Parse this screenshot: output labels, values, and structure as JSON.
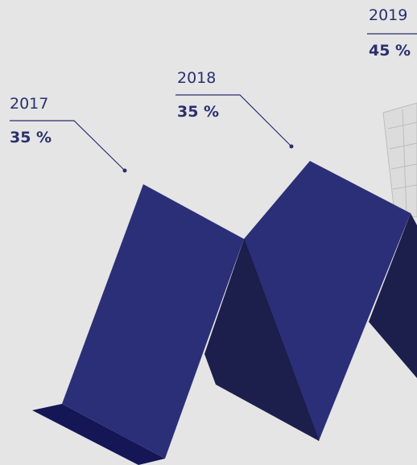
{
  "items": [
    {
      "year": "2017",
      "percent": "35 %"
    },
    {
      "year": "2018",
      "percent": "35 %"
    },
    {
      "year": "2019",
      "percent": "45 %"
    }
  ]
}
